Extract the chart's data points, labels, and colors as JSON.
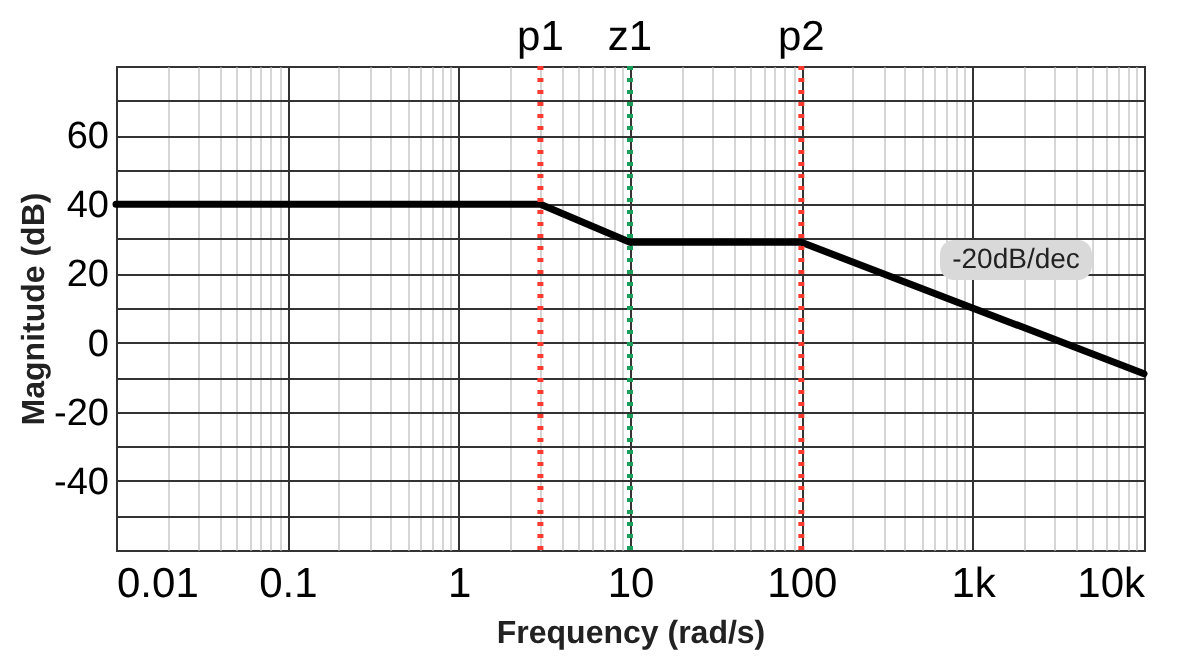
{
  "chart_data": {
    "type": "line",
    "xlabel": "Frequency (rad/s)",
    "ylabel": "Magnitude (dB)",
    "x": [
      0.01,
      3,
      10,
      100,
      10000
    ],
    "series": [
      {
        "color": "#000000",
        "values": [
          40,
          40,
          29,
          29,
          -9
        ]
      }
    ],
    "log": "x",
    "grid": true,
    "marker": "none",
    "line_style": "solid",
    "xlim": [
      0.01,
      10000
    ],
    "xticks": [
      0.01,
      0.1,
      1,
      10,
      100,
      {
        "value": 1000,
        "label": "1k"
      },
      {
        "value": 10000,
        "label": "10k"
      }
    ],
    "ylim": [
      -60,
      80
    ],
    "yticks": [
      {
        "value": -50,
        "label": null
      },
      -40,
      {
        "value": -30,
        "label": null
      },
      -20,
      {
        "value": -10,
        "label": null
      },
      0,
      {
        "value": 10,
        "label": null
      },
      20,
      {
        "value": 30,
        "label": null
      },
      40,
      {
        "value": 50,
        "label": null
      },
      60,
      {
        "value": 70,
        "label": null
      }
    ],
    "ref_lines": [
      {
        "axis": "x",
        "value": 3,
        "label": "p1",
        "color": "#ff3b30",
        "line_style": "dotted"
      },
      {
        "axis": "x",
        "value": 10,
        "label": "z1",
        "color": "#1a9e5a",
        "line_style": "dotted"
      },
      {
        "axis": "x",
        "value": 100,
        "label": "p2",
        "color": "#ff3b30",
        "line_style": "dotted"
      }
    ],
    "annotations": [
      "-20dB/dec"
    ]
  }
}
